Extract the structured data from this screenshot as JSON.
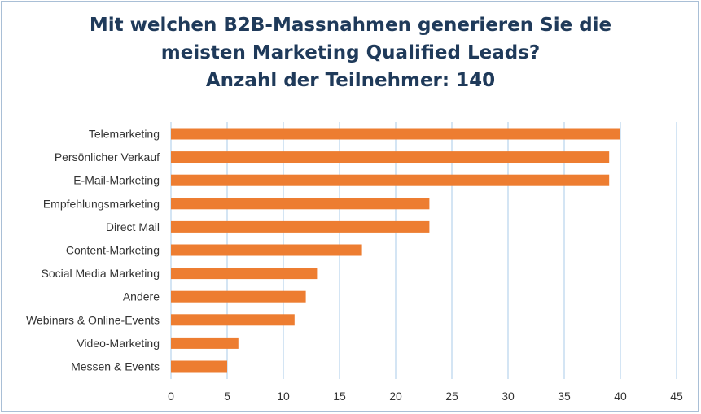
{
  "chart_data": {
    "type": "bar",
    "orientation": "horizontal",
    "title_lines": [
      "Mit welchen B2B-Massnahmen generieren Sie die",
      "meisten Marketing Qualified Leads?",
      "Anzahl der Teilnehmer: 140"
    ],
    "categories": [
      "Telemarketing",
      "Persönlicher Verkauf",
      "E-Mail-Marketing",
      "Empfehlungsmarketing",
      "Direct Mail",
      "Content-Marketing",
      "Social Media Marketing",
      "Andere",
      "Webinars & Online-Events",
      "Video-Marketing",
      "Messen & Events"
    ],
    "values": [
      40,
      39,
      39,
      23,
      23,
      17,
      13,
      12,
      11,
      6,
      5
    ],
    "xlim": [
      0,
      45
    ],
    "xticks": [
      "0",
      "5",
      "10",
      "15",
      "20",
      "25",
      "30",
      "35",
      "40",
      "45"
    ],
    "grid": true,
    "bar_color": "#ed7d31",
    "grid_color": "#bdd7ee",
    "xlabel": "",
    "ylabel": ""
  }
}
